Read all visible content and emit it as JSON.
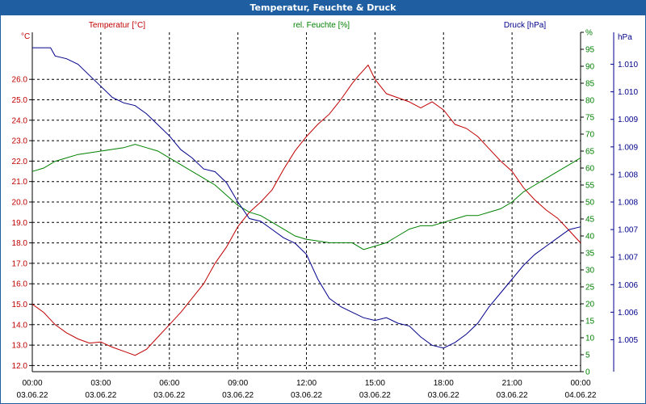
{
  "window_title": "Temperatur, Feuchte & Druck",
  "chart_data": {
    "type": "line",
    "title": "Temperatur, Feuchte & Druck",
    "grid": true,
    "x_axis": {
      "range": [
        "03.06.22 00:00",
        "04.06.22 00:00"
      ],
      "ticks": [
        {
          "time": "00:00",
          "date": "03.06.22",
          "hour": 0
        },
        {
          "time": "03:00",
          "date": "03.06.22",
          "hour": 3
        },
        {
          "time": "06:00",
          "date": "03.06.22",
          "hour": 6
        },
        {
          "time": "09:00",
          "date": "03.06.22",
          "hour": 9
        },
        {
          "time": "12:00",
          "date": "03.06.22",
          "hour": 12
        },
        {
          "time": "15:00",
          "date": "03.06.22",
          "hour": 15
        },
        {
          "time": "18:00",
          "date": "03.06.22",
          "hour": 18
        },
        {
          "time": "21:00",
          "date": "03.06.22",
          "hour": 21
        },
        {
          "time": "00:00",
          "date": "04.06.22",
          "hour": 24
        }
      ]
    },
    "axes": {
      "temperature": {
        "unit": "°C",
        "label": "Temperatur [°C]",
        "color": "#c00000",
        "range": [
          11.7,
          28.3
        ],
        "ticks": [
          "12.0",
          "13.0",
          "14.0",
          "15.0",
          "16.0",
          "17.0",
          "18.0",
          "19.0",
          "20.0",
          "21.0",
          "22.0",
          "23.0",
          "24.0",
          "25.0",
          "26.0"
        ]
      },
      "humidity": {
        "unit": "%",
        "label": "rel. Feuchte [%]",
        "color": "#008000",
        "range": [
          0,
          100
        ],
        "ticks": [
          "0",
          "5",
          "10",
          "15",
          "20",
          "25",
          "30",
          "35",
          "40",
          "45",
          "50",
          "55",
          "60",
          "65",
          "70",
          "75",
          "80",
          "85",
          "90",
          "95",
          "%"
        ]
      },
      "pressure": {
        "unit": "hPa",
        "label": "Druck [hPa]",
        "color": "#00008b",
        "range": [
          1004.42,
          1010.58
        ],
        "ticks": [
          "1.005",
          "1.006",
          "1.006",
          "1.007",
          "1.007",
          "1.008",
          "1.008",
          "1.009",
          "1.009",
          "1.010",
          "1.010",
          "hPa"
        ]
      }
    },
    "series": [
      {
        "name": "Temperatur [°C]",
        "axis": "temperature",
        "color": "#c00000",
        "points": [
          [
            0,
            15.0
          ],
          [
            0.5,
            14.6
          ],
          [
            1,
            14.0
          ],
          [
            1.5,
            13.6
          ],
          [
            2,
            13.3
          ],
          [
            2.5,
            13.1
          ],
          [
            3,
            13.15
          ],
          [
            3.5,
            12.9
          ],
          [
            4,
            12.7
          ],
          [
            4.5,
            12.5
          ],
          [
            5,
            12.8
          ],
          [
            5.5,
            13.4
          ],
          [
            6,
            14.0
          ],
          [
            6.5,
            14.6
          ],
          [
            7,
            15.3
          ],
          [
            7.5,
            16.0
          ],
          [
            8,
            17.0
          ],
          [
            8.5,
            17.8
          ],
          [
            9,
            18.8
          ],
          [
            9.5,
            19.5
          ],
          [
            10,
            20.0
          ],
          [
            10.5,
            20.6
          ],
          [
            11,
            21.6
          ],
          [
            11.5,
            22.5
          ],
          [
            12,
            23.2
          ],
          [
            12.5,
            23.8
          ],
          [
            13,
            24.3
          ],
          [
            13.5,
            25.0
          ],
          [
            14,
            25.8
          ],
          [
            14.3,
            26.2
          ],
          [
            14.7,
            26.7
          ],
          [
            15,
            26.0
          ],
          [
            15.5,
            25.3
          ],
          [
            16,
            25.1
          ],
          [
            16.5,
            24.9
          ],
          [
            17,
            24.6
          ],
          [
            17.5,
            24.9
          ],
          [
            18,
            24.5
          ],
          [
            18.5,
            23.8
          ],
          [
            19,
            23.6
          ],
          [
            19.5,
            23.2
          ],
          [
            20,
            22.6
          ],
          [
            20.5,
            22.0
          ],
          [
            21,
            21.5
          ],
          [
            21.5,
            20.7
          ],
          [
            22,
            20.1
          ],
          [
            22.5,
            19.6
          ],
          [
            23,
            19.2
          ],
          [
            23.5,
            18.6
          ],
          [
            24,
            18.0
          ]
        ]
      },
      {
        "name": "rel. Feuchte [%]",
        "axis": "humidity",
        "color": "#008000",
        "points": [
          [
            0,
            59
          ],
          [
            0.5,
            60
          ],
          [
            1,
            62
          ],
          [
            1.5,
            63
          ],
          [
            2,
            64
          ],
          [
            2.5,
            64.5
          ],
          [
            3,
            65
          ],
          [
            3.5,
            65.5
          ],
          [
            4,
            66
          ],
          [
            4.5,
            67
          ],
          [
            5,
            66
          ],
          [
            5.5,
            65
          ],
          [
            6,
            63
          ],
          [
            6.5,
            61
          ],
          [
            7,
            59
          ],
          [
            7.5,
            57
          ],
          [
            8,
            55
          ],
          [
            8.5,
            52
          ],
          [
            9,
            49
          ],
          [
            9.5,
            47
          ],
          [
            10,
            46
          ],
          [
            10.5,
            44
          ],
          [
            11,
            42
          ],
          [
            11.5,
            40
          ],
          [
            12,
            39
          ],
          [
            12.5,
            38.5
          ],
          [
            13,
            38
          ],
          [
            13.5,
            38
          ],
          [
            14,
            38
          ],
          [
            14.5,
            36
          ],
          [
            15,
            37
          ],
          [
            15.5,
            38
          ],
          [
            16,
            40
          ],
          [
            16.5,
            42
          ],
          [
            17,
            43
          ],
          [
            17.5,
            43
          ],
          [
            18,
            44
          ],
          [
            18.5,
            45
          ],
          [
            19,
            46
          ],
          [
            19.5,
            46
          ],
          [
            20,
            47
          ],
          [
            20.5,
            48
          ],
          [
            21,
            50
          ],
          [
            21.5,
            53
          ],
          [
            22,
            55
          ],
          [
            22.5,
            57
          ],
          [
            23,
            59
          ],
          [
            23.5,
            61
          ],
          [
            24,
            63
          ]
        ]
      },
      {
        "name": "Druck [hPa]",
        "axis": "pressure",
        "color": "#00008b",
        "points": [
          [
            0,
            1010.3
          ],
          [
            0.8,
            1010.3
          ],
          [
            1,
            1010.15
          ],
          [
            1.5,
            1010.1
          ],
          [
            2,
            1010.0
          ],
          [
            2.5,
            1009.8
          ],
          [
            3,
            1009.6
          ],
          [
            3.5,
            1009.4
          ],
          [
            4,
            1009.3
          ],
          [
            4.5,
            1009.25
          ],
          [
            5,
            1009.1
          ],
          [
            5.5,
            1008.9
          ],
          [
            6,
            1008.7
          ],
          [
            6.5,
            1008.45
          ],
          [
            7,
            1008.3
          ],
          [
            7.5,
            1008.1
          ],
          [
            8,
            1008.05
          ],
          [
            8.5,
            1007.85
          ],
          [
            9,
            1007.5
          ],
          [
            9.5,
            1007.2
          ],
          [
            10,
            1007.15
          ],
          [
            10.5,
            1007.0
          ],
          [
            11,
            1006.85
          ],
          [
            11.5,
            1006.75
          ],
          [
            12,
            1006.55
          ],
          [
            12.5,
            1006.1
          ],
          [
            13,
            1005.75
          ],
          [
            13.5,
            1005.6
          ],
          [
            14,
            1005.5
          ],
          [
            14.5,
            1005.4
          ],
          [
            15,
            1005.35
          ],
          [
            15.5,
            1005.4
          ],
          [
            16,
            1005.3
          ],
          [
            16.5,
            1005.25
          ],
          [
            17,
            1005.05
          ],
          [
            17.5,
            1004.9
          ],
          [
            18,
            1004.85
          ],
          [
            18.5,
            1004.95
          ],
          [
            19,
            1005.1
          ],
          [
            19.5,
            1005.3
          ],
          [
            20,
            1005.6
          ],
          [
            20.5,
            1005.85
          ],
          [
            21,
            1006.1
          ],
          [
            21.5,
            1006.35
          ],
          [
            22,
            1006.55
          ],
          [
            22.5,
            1006.7
          ],
          [
            23,
            1006.85
          ],
          [
            23.5,
            1007.0
          ],
          [
            24,
            1007.05
          ]
        ]
      }
    ]
  }
}
